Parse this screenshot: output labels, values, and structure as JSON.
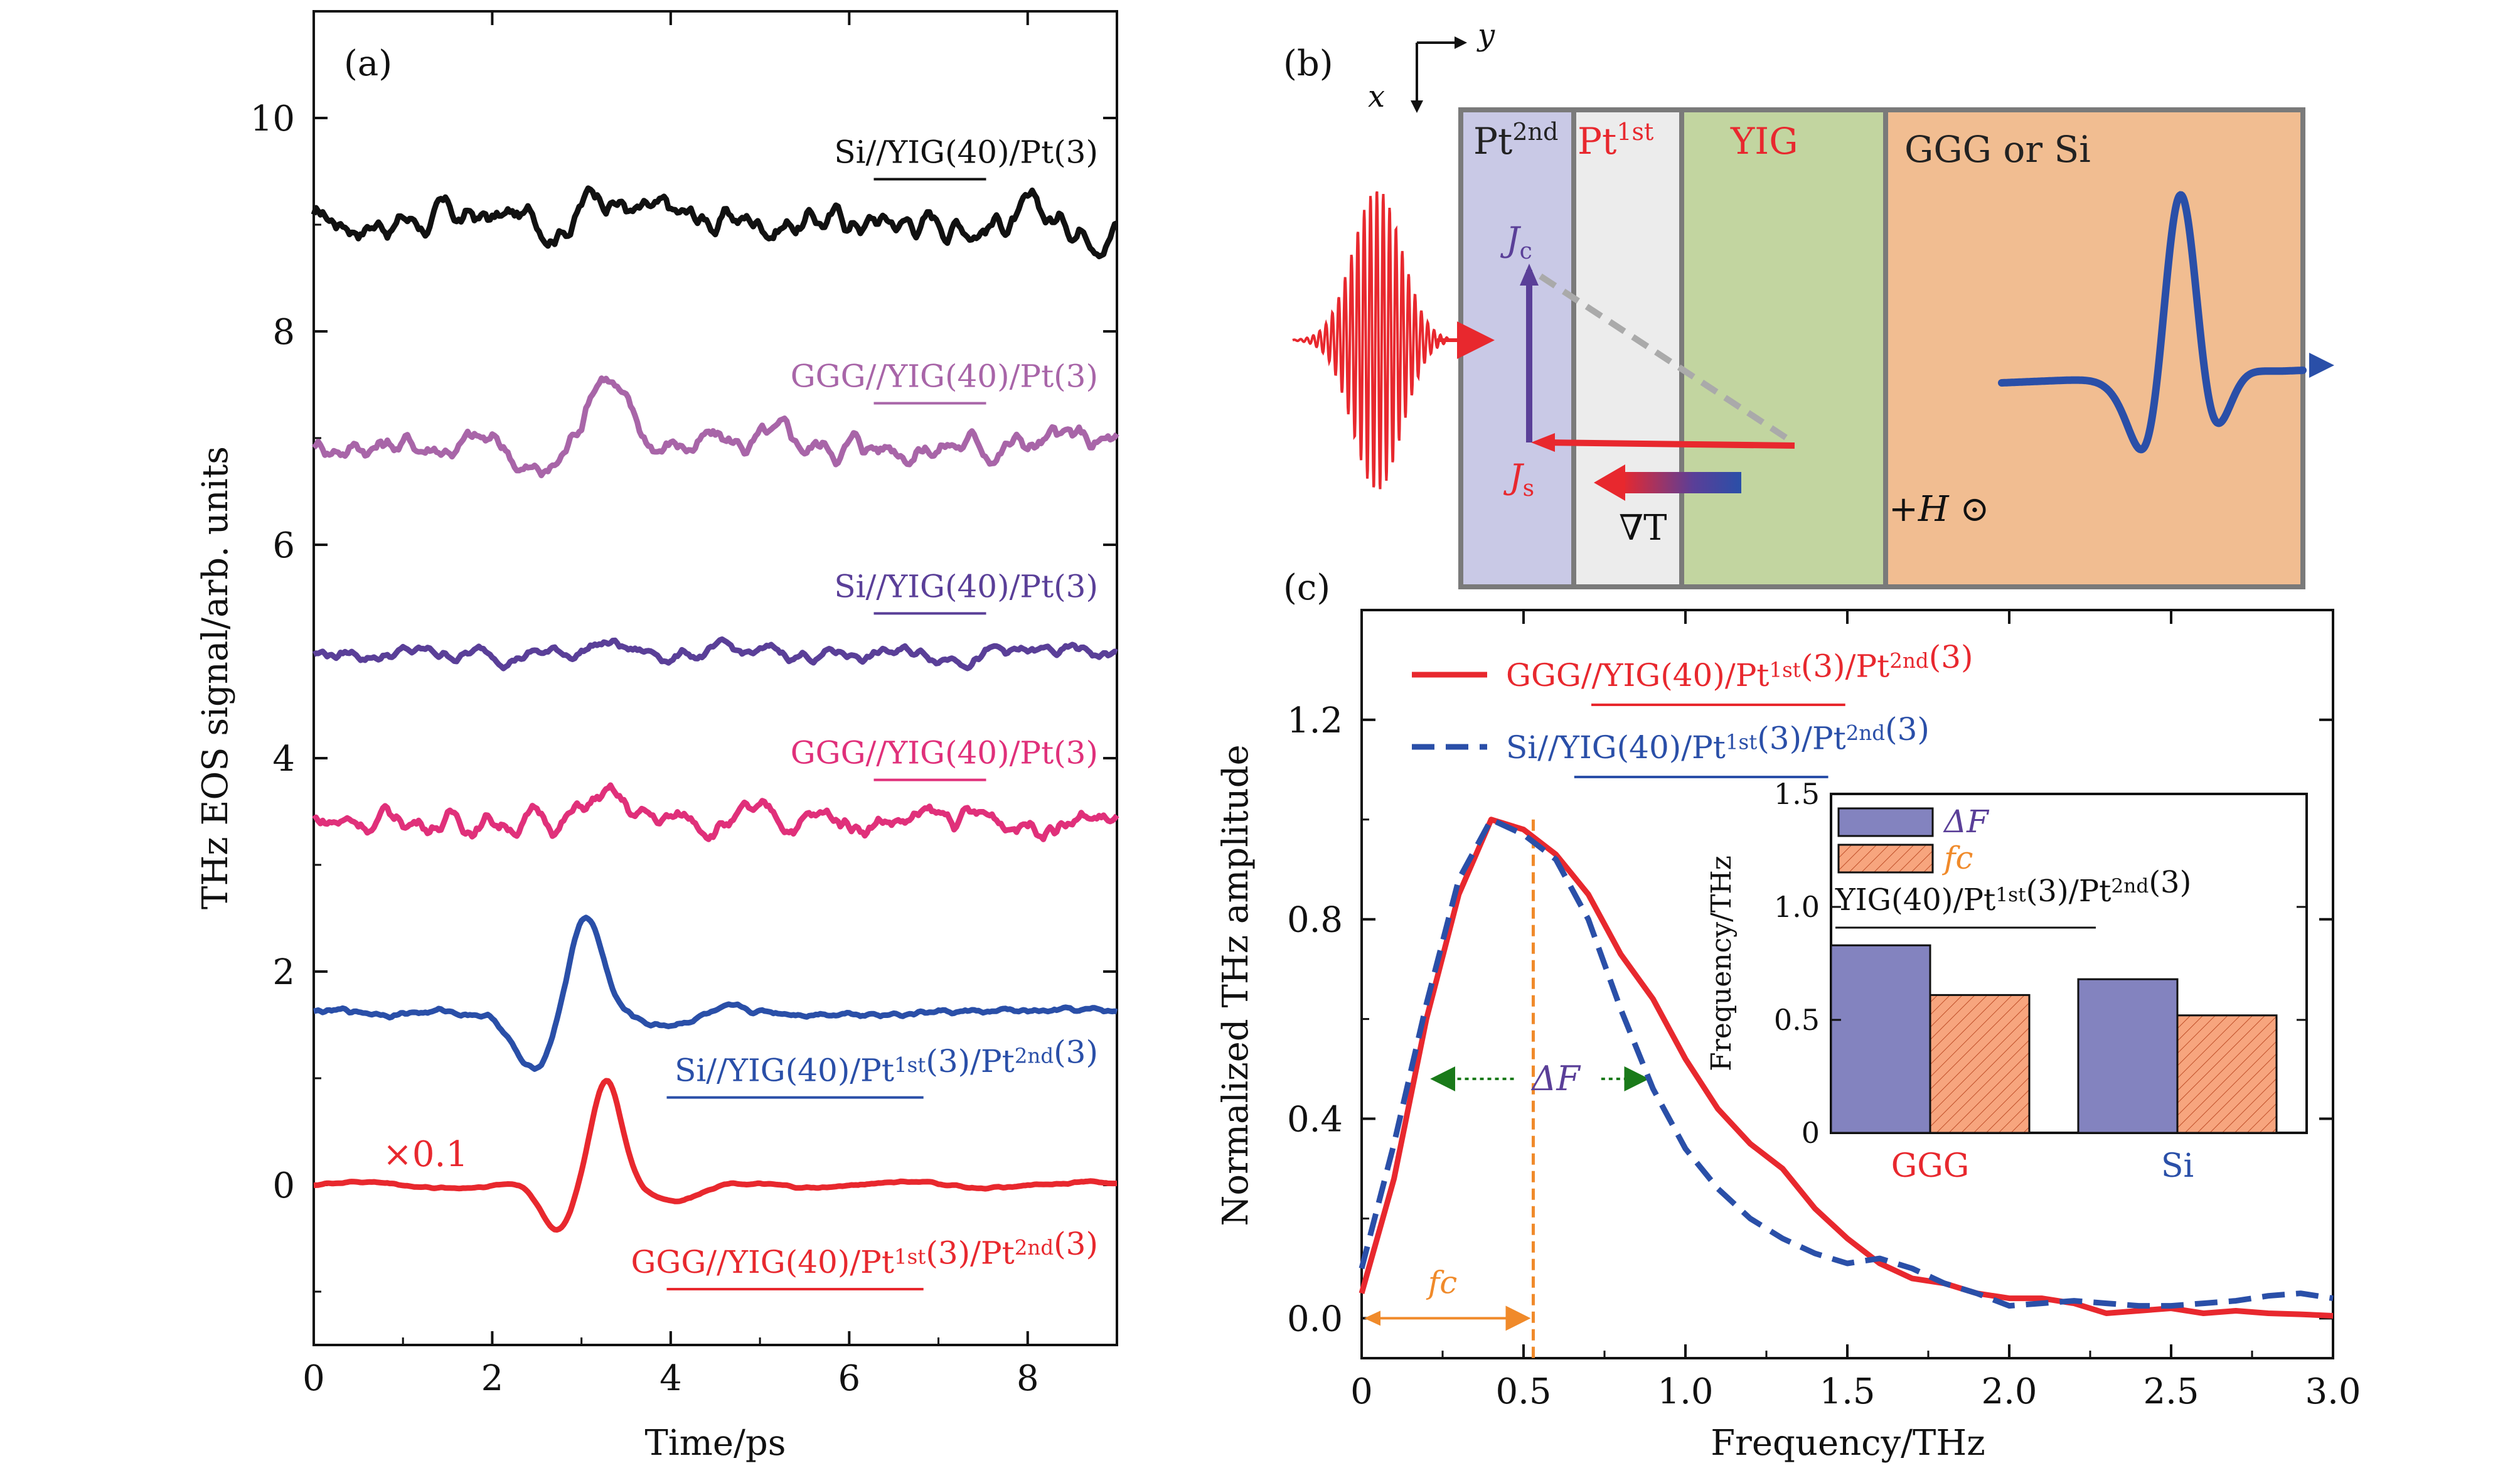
{
  "chart_data": [
    {
      "id": "a",
      "panel_label": "(a)",
      "type": "line",
      "xlabel": "Time/ps",
      "ylabel": "THz EOS signal/arb. units",
      "xlim": [
        0,
        9
      ],
      "ylim": [
        -1.5,
        11
      ],
      "xticks": [
        "0",
        "2",
        "4",
        "6",
        "8"
      ],
      "yticks": [
        "0",
        "2",
        "4",
        "6",
        "8",
        "10"
      ],
      "annotation": "×0.1",
      "series": [
        {
          "label_pre": "Si//",
          "label_under": "YIG(40)",
          "label_post": "/Pt(3)",
          "color": "#111111",
          "baseline": 9.05,
          "noise": 0.13,
          "pulse": 0.3,
          "dip": 0.0
        },
        {
          "label_pre": "GGG//",
          "label_under": "YIG(40)",
          "label_post": "/Pt(3)",
          "color": "#a865a8",
          "baseline": 6.95,
          "noise": 0.12,
          "pulse": 0.7,
          "dip": -0.3
        },
        {
          "label_pre": "Si//",
          "label_under": "YIG(40)",
          "label_post": "/Pt(3)",
          "color": "#5a3f98",
          "baseline": 4.98,
          "noise": 0.06,
          "pulse": 0.1,
          "dip": 0.0
        },
        {
          "label_pre": "GGG//",
          "label_under": "YIG(40)",
          "label_post": "/Pt(3)",
          "color": "#e0307a",
          "baseline": 3.42,
          "noise": 0.1,
          "pulse": 0.2,
          "dip": 0.0
        },
        {
          "label_pre": "Si//",
          "label_under": "YIG(40)/Pt1st(3)",
          "label_post": "/Pt2nd(3)",
          "color": "#2a4fa8",
          "baseline": 1.62,
          "noise": 0.05,
          "pulse": 0.9,
          "dip": -0.55
        },
        {
          "label_pre": "GGG//",
          "label_under": "YIG(40)/Pt1st(3)",
          "label_post": "/Pt2nd(3)",
          "color": "#e8282e",
          "baseline": 0.0,
          "noise": 0.02,
          "pulse": 1.0,
          "dip": -0.45
        }
      ]
    },
    {
      "id": "c",
      "panel_label": "(c)",
      "type": "line",
      "xlabel": "Frequency/THz",
      "ylabel": "Normalized THz amplitude",
      "xlim": [
        0,
        3.0
      ],
      "ylim": [
        -0.08,
        1.42
      ],
      "xticks": [
        "0",
        "0.5",
        "1.0",
        "1.5",
        "2.0",
        "2.5",
        "3.0"
      ],
      "yticks": [
        "0.0",
        "0.4",
        "0.8",
        "1.2"
      ],
      "series": [
        {
          "label_pre": "GGG//",
          "label_under": "YIG(40)/Pt1st(3)",
          "label_post": "/Pt2nd(3)",
          "color": "#e8282e",
          "style": "solid",
          "x": [
            0,
            0.1,
            0.2,
            0.3,
            0.4,
            0.5,
            0.6,
            0.7,
            0.8,
            0.9,
            1.0,
            1.1,
            1.2,
            1.3,
            1.4,
            1.5,
            1.6,
            1.7,
            1.8,
            1.9,
            2.0,
            2.1,
            2.2,
            2.3,
            2.4,
            2.5,
            2.6,
            2.7,
            2.8,
            2.9,
            3.0
          ],
          "y": [
            0.05,
            0.28,
            0.6,
            0.85,
            1.0,
            0.98,
            0.93,
            0.85,
            0.73,
            0.64,
            0.52,
            0.42,
            0.35,
            0.3,
            0.22,
            0.16,
            0.11,
            0.08,
            0.07,
            0.05,
            0.04,
            0.04,
            0.03,
            0.01,
            0.015,
            0.02,
            0.01,
            0.015,
            0.01,
            0.008,
            0.005
          ]
        },
        {
          "label_pre": "Si//",
          "label_under": "YIG(40)/Pt1st(3)",
          "label_post": "/Pt2nd(3)",
          "color": "#2a4fa8",
          "style": "dashed",
          "x": [
            0,
            0.1,
            0.2,
            0.3,
            0.4,
            0.5,
            0.6,
            0.7,
            0.8,
            0.9,
            1.0,
            1.1,
            1.2,
            1.3,
            1.4,
            1.5,
            1.6,
            1.7,
            1.8,
            1.9,
            2.0,
            2.1,
            2.2,
            2.3,
            2.4,
            2.5,
            2.6,
            2.7,
            2.8,
            2.9,
            3.0
          ],
          "y": [
            0.1,
            0.35,
            0.63,
            0.88,
            1.0,
            0.97,
            0.92,
            0.8,
            0.62,
            0.46,
            0.34,
            0.26,
            0.2,
            0.16,
            0.13,
            0.11,
            0.12,
            0.1,
            0.07,
            0.05,
            0.025,
            0.03,
            0.035,
            0.03,
            0.025,
            0.025,
            0.03,
            0.035,
            0.045,
            0.05,
            0.04
          ]
        }
      ],
      "annotations": {
        "delta_f": "ΔF",
        "fc": "fc",
        "fc_value": 0.53,
        "delta_f_range": [
          0.2,
          0.9
        ]
      }
    },
    {
      "id": "c-inset",
      "type": "bar",
      "ylabel": "Frequency/THz",
      "ylim": [
        0,
        1.5
      ],
      "yticks": [
        "0",
        "0.5",
        "1.0",
        "1.5"
      ],
      "categories": [
        "GGG",
        "Si"
      ],
      "category_colors": [
        "#e8282e",
        "#2a4fa8"
      ],
      "title_under": "YIG(40)/Pt1st(3)/Pt2nd(3)",
      "series": [
        {
          "name": "ΔF",
          "values": [
            0.83,
            0.68
          ],
          "color": "#8383bf"
        },
        {
          "name": "fc",
          "values": [
            0.61,
            0.52
          ],
          "color": "#f7a57e"
        }
      ]
    }
  ],
  "diagram": {
    "panel_label": "(b)",
    "axis_x": "x",
    "axis_y": "y",
    "layers": [
      {
        "name": "Pt2nd",
        "color": "#c9c9e6",
        "label_color": "#222222"
      },
      {
        "name": "Pt1st",
        "color": "#ececec",
        "label_color": "#e8282e"
      },
      {
        "name": "YIG",
        "color": "#c2d5a0",
        "label_color": "#e8282e"
      },
      {
        "name": "GGG or Si",
        "color": "#f1bd91",
        "label_color": "#222222"
      }
    ],
    "jc_label": "Jc",
    "js_label": "Js",
    "grad_label": "∇T",
    "field_label": "+H ⊙"
  }
}
